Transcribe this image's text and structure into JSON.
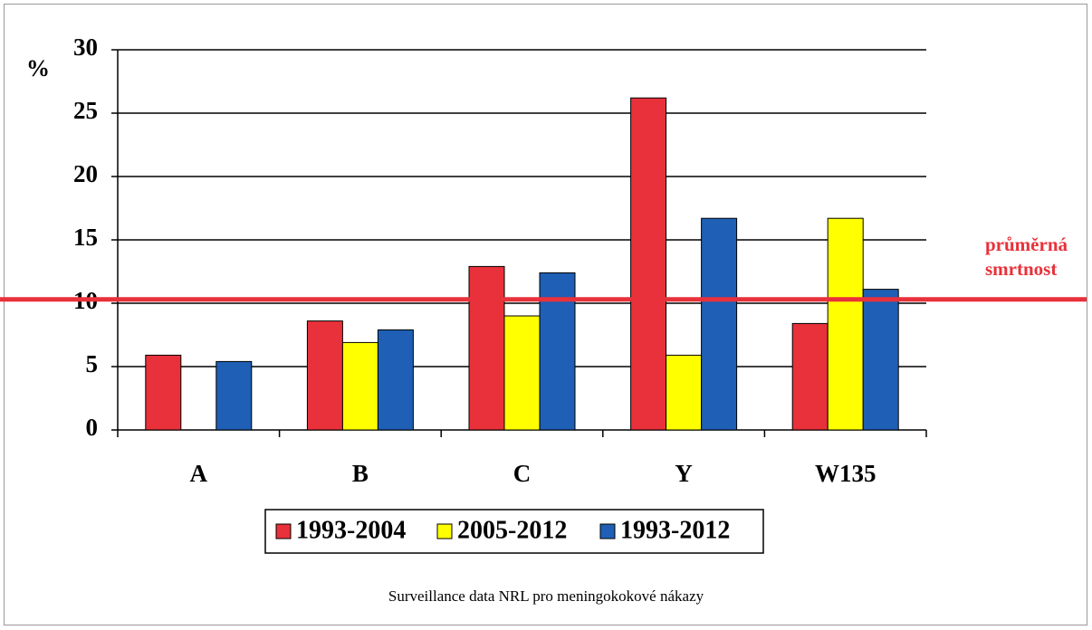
{
  "chart_data": {
    "type": "bar",
    "y_label": "%",
    "categories": [
      "A",
      "B",
      "C",
      "Y",
      "W135"
    ],
    "series": [
      {
        "name": "1993-2004",
        "color": "#e8313a",
        "values": [
          5.9,
          8.6,
          12.9,
          26.2,
          8.4
        ]
      },
      {
        "name": "2005-2012",
        "color": "#ffff00",
        "values": [
          null,
          6.9,
          9.0,
          5.9,
          16.7
        ]
      },
      {
        "name": "1993-2012",
        "color": "#1f5fb5",
        "values": [
          5.4,
          7.9,
          12.4,
          16.7,
          11.1
        ]
      }
    ],
    "ylim": [
      0,
      30
    ],
    "yticks": [
      0,
      5,
      10,
      15,
      20,
      25,
      30
    ],
    "grid": true,
    "reference_line": {
      "value": 10.3,
      "color": "#e8313a",
      "label": [
        "průměrná",
        "smrtnost"
      ]
    },
    "caption": "Surveillance data NRL pro meningokokové nákazy"
  }
}
